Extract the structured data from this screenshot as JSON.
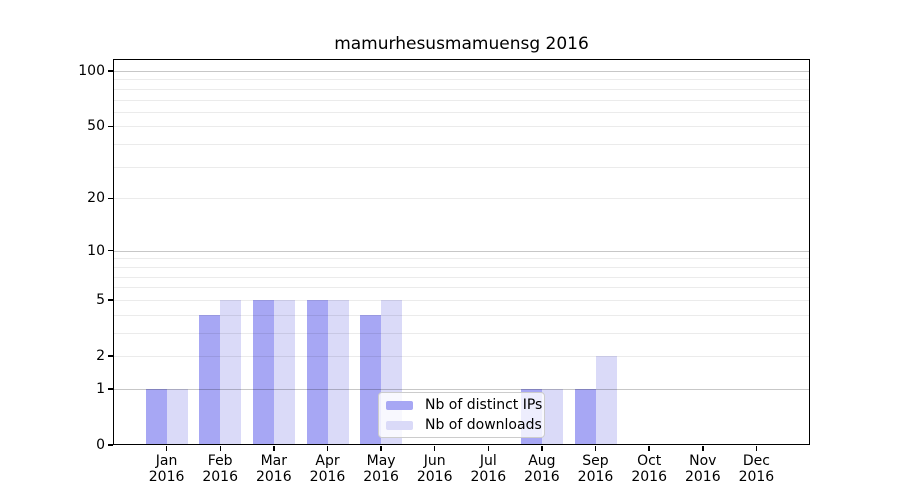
{
  "title": "mamurhesusmamuensg 2016",
  "x_axis": {
    "months": [
      "Jan",
      "Feb",
      "Mar",
      "Apr",
      "May",
      "Jun",
      "Jul",
      "Aug",
      "Sep",
      "Oct",
      "Nov",
      "Dec"
    ],
    "year": "2016"
  },
  "y_axis": {
    "ticks": [
      0,
      1,
      2,
      5,
      10,
      20,
      50,
      100
    ],
    "major_gridlines": [
      1,
      10,
      100
    ],
    "minor_gridlines": [
      2,
      3,
      4,
      5,
      6,
      7,
      8,
      9,
      20,
      30,
      40,
      50,
      60,
      70,
      80,
      90
    ]
  },
  "legend": {
    "items": [
      {
        "label": "Nb of distinct IPs",
        "color": "#a7a7f4"
      },
      {
        "label": "Nb of downloads",
        "color": "#dadaf8"
      }
    ]
  },
  "chart_data": {
    "type": "bar",
    "title": "mamurhesusmamuensg 2016",
    "categories": [
      "Jan 2016",
      "Feb 2016",
      "Mar 2016",
      "Apr 2016",
      "May 2016",
      "Jun 2016",
      "Jul 2016",
      "Aug 2016",
      "Sep 2016",
      "Oct 2016",
      "Nov 2016",
      "Dec 2016"
    ],
    "series": [
      {
        "name": "Nb of distinct IPs",
        "color": "#a7a7f4",
        "values": [
          1,
          4,
          5,
          5,
          4,
          0,
          0,
          1,
          1,
          0,
          0,
          0
        ]
      },
      {
        "name": "Nb of downloads",
        "color": "#dadaf8",
        "values": [
          1,
          5,
          5,
          5,
          5,
          0,
          0,
          1,
          2,
          0,
          0,
          0
        ]
      }
    ],
    "xlabel": "",
    "ylabel": "",
    "yscale": "log1p",
    "yticks": [
      0,
      1,
      2,
      5,
      10,
      20,
      50,
      100
    ],
    "ylim": [
      0,
      116
    ],
    "grid": true,
    "legend_position": "lower center"
  }
}
